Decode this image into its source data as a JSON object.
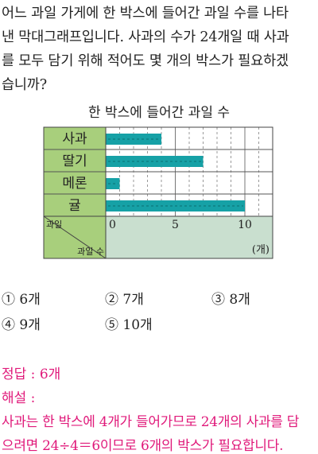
{
  "question": {
    "lines": [
      "어느 과일 가게에 한 박스에 들어간 과일 수를 나타",
      "낸 막대그래프입니다. 사과의 수가 24개일 때 사과",
      "를 모두 담기 위해 적어도 몇 개의 박스가 필요하겠",
      "습니까?"
    ]
  },
  "chart_title": "한 박스에 들어간 과일 수",
  "chart_data": {
    "type": "bar",
    "orientation": "horizontal",
    "title": "한 박스에 들어간 과일 수",
    "categories": [
      "사과",
      "딸기",
      "메론",
      "귤"
    ],
    "values": [
      4,
      7,
      1,
      10
    ],
    "xlim": [
      0,
      12
    ],
    "ticks": [
      0,
      5,
      10
    ],
    "unit": "(개)",
    "corner_top_label": "과일",
    "corner_bottom_label": "과일 수",
    "grid": true,
    "colors": {
      "bar": "#16a1a6",
      "category_cell": "#a8cf7c",
      "axis_row": "#c9dfcf",
      "plot_bg": "#ffffff"
    }
  },
  "choices": [
    {
      "num": "①",
      "text": "6개"
    },
    {
      "num": "②",
      "text": "7개"
    },
    {
      "num": "③",
      "text": "8개"
    },
    {
      "num": "④",
      "text": "9개"
    },
    {
      "num": "⑤",
      "text": "10개"
    }
  ],
  "answer": {
    "label": "정답 : 6개",
    "explanation_label": "해설 :",
    "explanation_lines": [
      "사과는 한 박스에 4개가 들어가므로 24개의 사과를 담",
      "으려면 24÷4＝6이므로 6개의 박스가 필요합니다."
    ]
  },
  "colors": {
    "answer_text": "#e0197a"
  }
}
